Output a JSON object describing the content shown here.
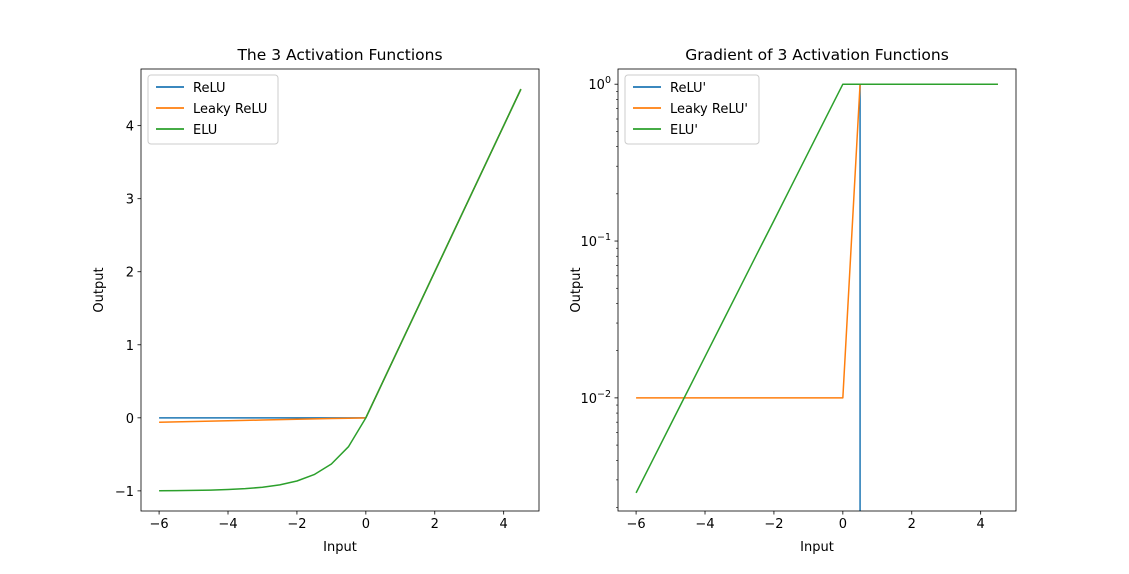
{
  "chart_data": [
    {
      "type": "line",
      "title": "The 3 Activation Functions",
      "xlabel": "Input",
      "ylabel": "Output",
      "xlim": [
        -6.525,
        5.025
      ],
      "ylim": [
        -1.2755,
        4.7755
      ],
      "yscale": "linear",
      "grid": false,
      "legend_position": "top-left",
      "xticks": [
        -6,
        -4,
        -2,
        0,
        2,
        4
      ],
      "xtick_labels": [
        "−6",
        "−4",
        "−2",
        "0",
        "2",
        "4"
      ],
      "yticks": [
        -1,
        0,
        1,
        2,
        3,
        4
      ],
      "ytick_labels": [
        "−1",
        "0",
        "1",
        "2",
        "3",
        "4"
      ],
      "series": [
        {
          "name": "ReLU",
          "color": "#1f77b4",
          "x": [
            -6,
            -5.5,
            -5,
            -4.5,
            -4,
            -3.5,
            -3,
            -2.5,
            -2,
            -1.5,
            -1,
            -0.5,
            0,
            0.5,
            1,
            1.5,
            2,
            2.5,
            3,
            3.5,
            4,
            4.5
          ],
          "y": [
            0,
            0,
            0,
            0,
            0,
            0,
            0,
            0,
            0,
            0,
            0,
            0,
            0,
            0.5,
            1,
            1.5,
            2,
            2.5,
            3,
            3.5,
            4,
            4.5
          ]
        },
        {
          "name": "Leaky ReLU",
          "color": "#ff7f0e",
          "x": [
            -6,
            -5.5,
            -5,
            -4.5,
            -4,
            -3.5,
            -3,
            -2.5,
            -2,
            -1.5,
            -1,
            -0.5,
            0,
            0.5,
            1,
            1.5,
            2,
            2.5,
            3,
            3.5,
            4,
            4.5
          ],
          "y": [
            -0.06,
            -0.055,
            -0.05,
            -0.045,
            -0.04,
            -0.035,
            -0.03,
            -0.025,
            -0.02,
            -0.015,
            -0.01,
            -0.005,
            0,
            0.5,
            1,
            1.5,
            2,
            2.5,
            3,
            3.5,
            4,
            4.5
          ]
        },
        {
          "name": "ELU",
          "color": "#2ca02c",
          "x": [
            -6,
            -5.5,
            -5,
            -4.5,
            -4,
            -3.5,
            -3,
            -2.5,
            -2,
            -1.5,
            -1,
            -0.5,
            0,
            0.5,
            1,
            1.5,
            2,
            2.5,
            3,
            3.5,
            4,
            4.5
          ],
          "y": [
            -0.998,
            -0.996,
            -0.993,
            -0.989,
            -0.982,
            -0.97,
            -0.95,
            -0.918,
            -0.865,
            -0.777,
            -0.632,
            -0.393,
            0,
            0.5,
            1,
            1.5,
            2,
            2.5,
            3,
            3.5,
            4,
            4.5
          ]
        }
      ]
    },
    {
      "type": "line",
      "title": "Gradient of 3 Activation Functions",
      "xlabel": "Input",
      "ylabel": "Output",
      "xlim": [
        -6.525,
        5.025
      ],
      "ylim": [
        0.0019,
        1.25
      ],
      "yscale": "log",
      "grid": false,
      "legend_position": "top-left",
      "xticks": [
        -6,
        -4,
        -2,
        0,
        2,
        4
      ],
      "xtick_labels": [
        "−6",
        "−4",
        "−2",
        "0",
        "2",
        "4"
      ],
      "yticks": [
        0.01,
        0.1,
        1
      ],
      "ytick_bases": [
        "10",
        "10",
        "10"
      ],
      "ytick_exponents": [
        "−2",
        "−1",
        "0"
      ],
      "series": [
        {
          "name": "ReLU'",
          "color": "#1f77b4",
          "x": [
            0.5,
            1,
            1.5,
            2,
            2.5,
            3,
            3.5,
            4,
            4.5
          ],
          "y": [
            1,
            1,
            1,
            1,
            1,
            1,
            1,
            1,
            1
          ],
          "drop_to_axis_at_start": true
        },
        {
          "name": "Leaky ReLU'",
          "color": "#ff7f0e",
          "x": [
            -6,
            -5.5,
            -5,
            -4.5,
            -4,
            -3.5,
            -3,
            -2.5,
            -2,
            -1.5,
            -1,
            -0.5,
            0,
            0.5,
            1,
            1.5,
            2,
            2.5,
            3,
            3.5,
            4,
            4.5
          ],
          "y": [
            0.01,
            0.01,
            0.01,
            0.01,
            0.01,
            0.01,
            0.01,
            0.01,
            0.01,
            0.01,
            0.01,
            0.01,
            0.01,
            1,
            1,
            1,
            1,
            1,
            1,
            1,
            1,
            1
          ]
        },
        {
          "name": "ELU'",
          "color": "#2ca02c",
          "x": [
            -6,
            -5.5,
            -5,
            -4.5,
            -4,
            -3.5,
            -3,
            -2.5,
            -2,
            -1.5,
            -1,
            -0.5,
            0,
            0.5,
            1,
            1.5,
            2,
            2.5,
            3,
            3.5,
            4,
            4.5
          ],
          "y": [
            0.00248,
            0.00409,
            0.00674,
            0.0111,
            0.0183,
            0.0302,
            0.0498,
            0.0821,
            0.135,
            0.223,
            0.368,
            0.607,
            1,
            1,
            1,
            1,
            1,
            1,
            1,
            1,
            1,
            1
          ]
        }
      ]
    }
  ]
}
